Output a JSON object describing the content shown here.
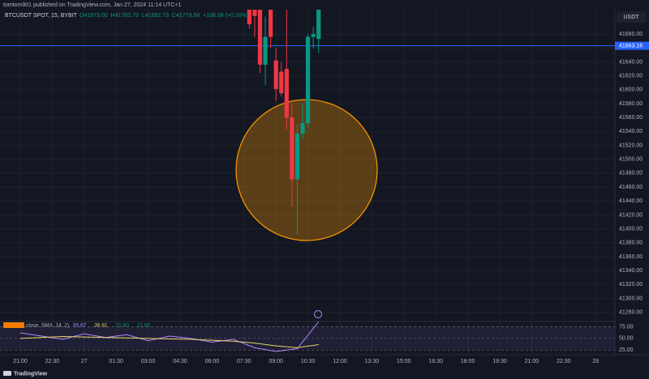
{
  "header": {
    "publisher": "tomtom901 published on TradingView.com, Jan 27, 2024 11:14 UTC+1"
  },
  "footer": {
    "brand": "TradingView"
  },
  "chart_data": [
    {
      "type": "candlestick",
      "title": "BTCUSDT SPOT, 15, BYBIT",
      "ohlc": [
        "O41673.00",
        "H41782.79",
        "L41652.73",
        "C41779.58",
        "+106.58 (+0.26%)"
      ],
      "currency": "USDT",
      "x": [
        "07:45",
        "08:00",
        "08:15",
        "08:30",
        "08:45",
        "09:00",
        "09:15",
        "09:30",
        "09:45",
        "10:00",
        "10:15",
        "10:30",
        "10:45",
        "11:00"
      ],
      "open": [
        41730,
        41725,
        41720,
        41636,
        41720,
        41642,
        41626,
        41630,
        41560,
        41471,
        41537,
        41552,
        41676,
        41673
      ],
      "high": [
        41740,
        41735,
        41730,
        41705,
        41730,
        41660,
        41640,
        41725,
        41580,
        41550,
        41580,
        41680,
        41690,
        41782.79
      ],
      "low": [
        41688,
        41676,
        41624,
        41607,
        41660,
        41584,
        41590,
        41543,
        41432,
        41392,
        41530,
        41545,
        41660,
        41652.73
      ],
      "close": [
        41694,
        41706,
        41636,
        41676,
        41676,
        41601,
        41595,
        41560,
        41471,
        41537,
        41552,
        41676,
        41680,
        41779.58
      ],
      "up_color": "#089981",
      "down_color": "#f23645",
      "ylim": [
        41268,
        41715
      ],
      "yticks": [
        {
          "value": 41680,
          "label": "41680.00"
        },
        {
          "value": 41660,
          "label": "41660.00"
        },
        {
          "value": 41640,
          "label": "41640.00"
        },
        {
          "value": 41620,
          "label": "41620.00"
        },
        {
          "value": 41600,
          "label": "41600.00"
        },
        {
          "value": 41580,
          "label": "41580.00"
        },
        {
          "value": 41560,
          "label": "41560.00"
        },
        {
          "value": 41540,
          "label": "41540.00"
        },
        {
          "value": 41520,
          "label": "41520.00"
        },
        {
          "value": 41500,
          "label": "41500.00"
        },
        {
          "value": 41480,
          "label": "41480.00"
        },
        {
          "value": 41460,
          "label": "41460.00"
        },
        {
          "value": 41440,
          "label": "41440.00"
        },
        {
          "value": 41420,
          "label": "41420.00"
        },
        {
          "value": 41400,
          "label": "41400.00"
        },
        {
          "value": 41380,
          "label": "41380.00"
        },
        {
          "value": 41360,
          "label": "41360.00"
        },
        {
          "value": 41340,
          "label": "41340.00"
        },
        {
          "value": 41320,
          "label": "41320.00"
        },
        {
          "value": 41300,
          "label": "41300.00"
        },
        {
          "value": 41280,
          "label": "41280.00"
        }
      ],
      "price_line": {
        "value": 41663.16,
        "color": "#2962ff"
      },
      "xticks": [
        "21:00",
        "22:30",
        "27",
        "01:30",
        "03:00",
        "04:30",
        "06:00",
        "07:30",
        "09:00",
        "10:30",
        "12:00",
        "13:30",
        "15:00",
        "16:30",
        "18:00",
        "19:30",
        "21:00",
        "22:30",
        "28"
      ]
    },
    {
      "type": "line",
      "title": "close, SMA, 14, 2)",
      "legend_values": [
        "85.67",
        "36.81",
        "21.60",
        "21.60"
      ],
      "x": [
        "21:00",
        "22:00",
        "23:00",
        "00:00",
        "01:00",
        "02:00",
        "03:00",
        "04:00",
        "05:00",
        "06:00",
        "07:00",
        "08:00",
        "09:00",
        "10:00",
        "11:00"
      ],
      "series": [
        {
          "color": "#b388ff",
          "values": [
            62,
            55,
            48,
            60,
            52,
            58,
            45,
            55,
            50,
            42,
            48,
            30,
            22,
            28,
            85.67
          ]
        },
        {
          "color": "#e8d56b",
          "values": [
            50,
            52,
            54,
            53,
            52,
            51,
            50,
            49,
            48,
            46,
            44,
            40,
            34,
            30,
            36.81
          ]
        }
      ],
      "ylim": [
        15,
        88
      ],
      "yticks": [
        {
          "value": 75,
          "label": "75.00"
        },
        {
          "value": 50,
          "label": "50.00"
        },
        {
          "value": 25,
          "label": "25.00"
        }
      ]
    }
  ]
}
